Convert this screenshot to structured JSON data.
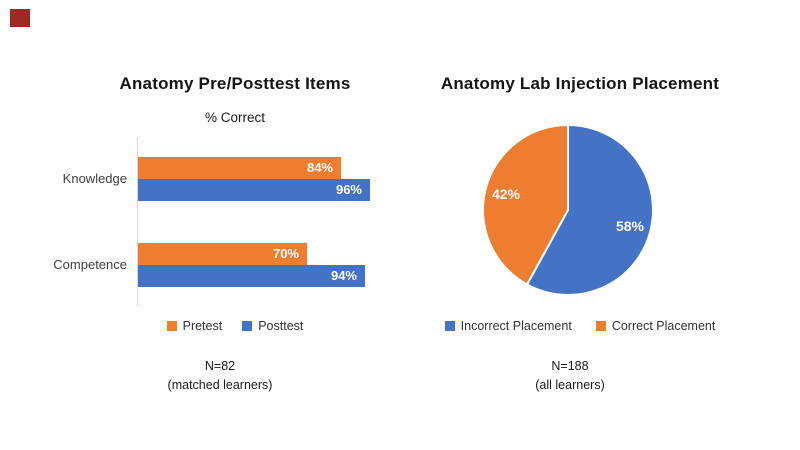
{
  "decor": {
    "corner_mark_color": "#9C2A23"
  },
  "chart_data": [
    {
      "type": "bar",
      "orientation": "horizontal",
      "title": "Anatomy Pre/Posttest Items",
      "subtitle": "% Correct",
      "categories": [
        "Knowledge",
        "Competence"
      ],
      "series": [
        {
          "name": "Pretest",
          "color": "#ED7D31",
          "values": [
            84,
            70
          ],
          "data_labels": [
            "84%",
            "70%"
          ]
        },
        {
          "name": "Posttest",
          "color": "#4472C4",
          "values": [
            96,
            94
          ],
          "data_labels": [
            "96%",
            "94%"
          ]
        }
      ],
      "xlim": [
        0,
        100
      ],
      "grid": false,
      "legend_position": "bottom",
      "note": {
        "line1": "N=82",
        "line2": "(matched learners)"
      }
    },
    {
      "type": "pie",
      "title": "Anatomy Lab Injection Placement",
      "slices": [
        {
          "label": "Incorrect Placement",
          "value": 58,
          "color": "#4472C4",
          "data_label": "58%"
        },
        {
          "label": "Correct Placement",
          "value": 42,
          "color": "#ED7D31",
          "data_label": "42%"
        }
      ],
      "start_angle_deg": 0,
      "direction": "clockwise",
      "legend_position": "bottom",
      "note": {
        "line1": "N=188",
        "line2": "(all learners)"
      }
    }
  ]
}
